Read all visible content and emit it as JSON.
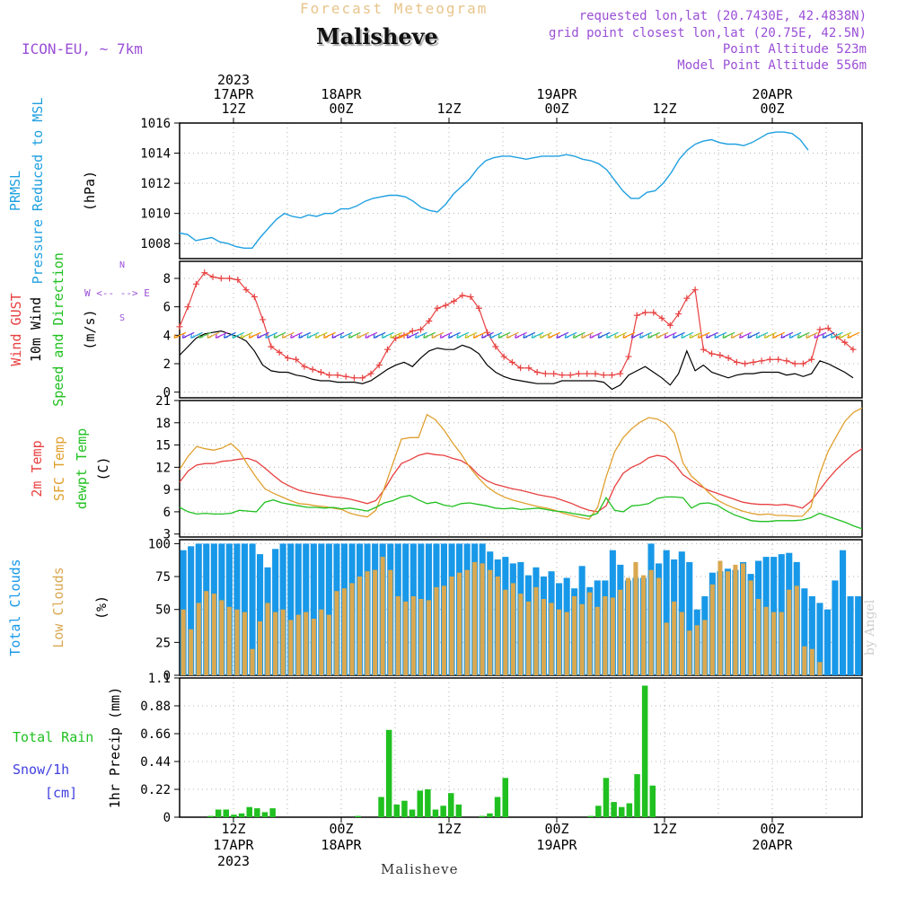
{
  "header": {
    "subtitle": "Forecast Meteogram",
    "location": "Malisheve",
    "model": "ICON-EU, ~ 7km",
    "info_lines": [
      "requested lon,lat (20.7430E, 42.4838N)",
      "grid point closest lon,lat (20.75E, 42.5N)",
      "Point Altitude 523m",
      "Model Point Altitude 556m"
    ],
    "bottom_label": "Malisheve",
    "watermark": "by Angel"
  },
  "time_axis": {
    "start_hour": 6,
    "end_hour": 82,
    "top_labels": [
      {
        "hour": 12,
        "lines": [
          "2023",
          "17APR",
          "12Z"
        ]
      },
      {
        "hour": 24,
        "lines": [
          "18APR",
          "00Z"
        ]
      },
      {
        "hour": 36,
        "lines": [
          "12Z"
        ]
      },
      {
        "hour": 48,
        "lines": [
          "19APR",
          "00Z"
        ]
      },
      {
        "hour": 60,
        "lines": [
          "12Z"
        ]
      },
      {
        "hour": 72,
        "lines": [
          "20APR",
          "00Z"
        ]
      }
    ],
    "bottom_labels": [
      {
        "hour": 12,
        "lines": [
          "12Z",
          "17APR",
          "2023"
        ]
      },
      {
        "hour": 24,
        "lines": [
          "00Z",
          "18APR"
        ]
      },
      {
        "hour": 36,
        "lines": [
          "12Z"
        ]
      },
      {
        "hour": 48,
        "lines": [
          "00Z",
          "19APR"
        ]
      },
      {
        "hour": 60,
        "lines": [
          "12Z"
        ]
      },
      {
        "hour": 72,
        "lines": [
          "00Z",
          "20APR"
        ]
      }
    ]
  },
  "colors": {
    "pressure": "#1fa0e0",
    "gust": "#e84040",
    "wind": "#000000",
    "temp2m": "#e84040",
    "sfc_temp": "#e0a030",
    "dewpt": "#20c020",
    "total_clouds": "#1898e8",
    "low_clouds": "#d9a850",
    "rain": "#20c020",
    "purple": "#9a4fd6",
    "snow": "#4040e0"
  },
  "chart_data": [
    {
      "type": "line",
      "panel": "pressure",
      "ylabel_lines": [
        {
          "text": "PRMSL",
          "color": "#1fa0e0"
        },
        {
          "text": "Pressure Reduced to MSL",
          "color": "#1fa0e0"
        },
        {
          "text": "(hPa)",
          "color": "#000000"
        }
      ],
      "ylim": [
        1007,
        1016
      ],
      "yticks": [
        1008,
        1010,
        1012,
        1014,
        1016
      ],
      "series": [
        {
          "values": [
            1008.7,
            1008.6,
            1008.2,
            1008.3,
            1008.4,
            1008.1,
            1008.0,
            1007.8,
            1007.7,
            1007.7,
            1008.4,
            1009.0,
            1009.6,
            1010.0,
            1009.8,
            1009.7,
            1009.9,
            1009.8,
            1010.0,
            1010.0,
            1010.3,
            1010.3,
            1010.5,
            1010.8,
            1011.0,
            1011.1,
            1011.2,
            1011.2,
            1011.1,
            1010.8,
            1010.4,
            1010.2,
            1010.1,
            1010.6,
            1011.3,
            1011.8,
            1012.3,
            1013.0,
            1013.5,
            1013.7,
            1013.8,
            1013.8,
            1013.7,
            1013.6,
            1013.7,
            1013.8,
            1013.8,
            1013.8,
            1013.9,
            1013.8,
            1013.6,
            1013.5,
            1013.3,
            1012.9,
            1012.2,
            1011.5,
            1011.0,
            1011.0,
            1011.4,
            1011.5,
            1012.0,
            1012.7,
            1013.6,
            1014.2,
            1014.6,
            1014.8,
            1014.9,
            1014.7,
            1014.6,
            1014.6,
            1014.5,
            1014.7,
            1015.0,
            1015.3,
            1015.4,
            1015.4,
            1015.3,
            1014.9,
            1014.2
          ]
        }
      ]
    },
    {
      "type": "line",
      "panel": "wind",
      "ylabel_lines": [
        {
          "text": "Wind GUST",
          "color": "#e84040"
        },
        {
          "text": "10m Wind",
          "color": "#000000"
        },
        {
          "text": "Speed and Direction",
          "color": "#20c020"
        },
        {
          "text": "(m/s)",
          "color": "#000000"
        }
      ],
      "compass": "W <-- --> E",
      "ylim": [
        -0.4,
        9.2
      ],
      "yticks": [
        0,
        2,
        4,
        6,
        8
      ],
      "series": [
        {
          "name": "Wind GUST",
          "values": [
            4.6,
            6.0,
            7.6,
            8.4,
            8.1,
            8.0,
            8.0,
            7.9,
            7.2,
            6.7,
            5.1,
            3.2,
            2.8,
            2.4,
            2.3,
            1.8,
            1.6,
            1.4,
            1.2,
            1.2,
            1.1,
            1.0,
            1.0,
            1.3,
            1.9,
            3.0,
            3.8,
            4.0,
            4.3,
            4.4,
            5.0,
            5.9,
            6.1,
            6.4,
            6.8,
            6.7,
            5.9,
            4.2,
            3.2,
            2.5,
            2.1,
            1.7,
            1.7,
            1.4,
            1.3,
            1.3,
            1.2,
            1.2,
            1.3,
            1.3,
            1.3,
            1.2,
            1.2,
            1.3,
            2.5,
            5.4,
            5.6,
            5.6,
            5.2,
            4.7,
            5.5,
            6.6,
            7.2,
            3.0,
            2.7,
            2.6,
            2.4,
            2.1,
            2.0,
            2.1,
            2.2,
            2.3,
            2.3,
            2.2,
            2.0,
            2.0,
            2.3,
            4.4,
            4.5,
            3.9,
            3.5,
            3.0
          ]
        },
        {
          "name": "10m Wind",
          "values": [
            2.6,
            3.2,
            3.8,
            4.1,
            4.2,
            4.3,
            4.1,
            3.9,
            3.6,
            2.9,
            1.9,
            1.5,
            1.4,
            1.4,
            1.2,
            1.1,
            0.9,
            0.8,
            0.8,
            0.7,
            0.7,
            0.7,
            0.6,
            0.8,
            1.2,
            1.6,
            1.9,
            2.1,
            1.8,
            2.4,
            2.9,
            3.1,
            3.0,
            3.0,
            3.3,
            3.1,
            2.7,
            1.9,
            1.4,
            1.1,
            0.9,
            0.8,
            0.7,
            0.6,
            0.6,
            0.6,
            0.8,
            0.8,
            0.8,
            0.8,
            0.8,
            0.7,
            0.2,
            0.5,
            1.2,
            1.5,
            1.8,
            1.4,
            1.0,
            0.5,
            1.3,
            2.9,
            1.5,
            1.9,
            1.4,
            1.2,
            1.0,
            1.2,
            1.3,
            1.3,
            1.4,
            1.4,
            1.4,
            1.2,
            1.3,
            1.1,
            1.3,
            2.2,
            2.0,
            1.7,
            1.4,
            1.0
          ]
        }
      ]
    },
    {
      "type": "line",
      "panel": "temperature",
      "ylabel_lines": [
        {
          "text": "2m Temp",
          "color": "#e84040"
        },
        {
          "text": "SFC Temp",
          "color": "#e0a030"
        },
        {
          "text": "dewpt Temp",
          "color": "#20c020"
        },
        {
          "text": "(C)",
          "color": "#000000"
        }
      ],
      "ylim": [
        2.6,
        21
      ],
      "yticks": [
        3,
        6,
        9,
        12,
        15,
        18,
        21
      ],
      "series": [
        {
          "name": "2m Temp",
          "values": [
            10.0,
            11.5,
            12.3,
            12.5,
            12.5,
            12.8,
            12.9,
            13.1,
            13.2,
            12.8,
            11.9,
            10.9,
            10.0,
            9.4,
            8.9,
            8.6,
            8.4,
            8.2,
            8.0,
            7.9,
            7.7,
            7.4,
            7.1,
            7.5,
            9.0,
            10.9,
            12.5,
            13.0,
            13.6,
            13.9,
            13.7,
            13.6,
            13.2,
            12.9,
            12.2,
            11.0,
            10.2,
            9.7,
            9.4,
            9.1,
            8.9,
            8.6,
            8.3,
            8.1,
            7.9,
            7.5,
            7.1,
            6.6,
            6.2,
            6.0,
            6.8,
            9.4,
            11.2,
            12.0,
            12.5,
            13.3,
            13.6,
            13.4,
            12.5,
            11.0,
            10.2,
            9.5,
            8.9,
            8.5,
            8.1,
            7.7,
            7.3,
            7.1,
            7.0,
            7.0,
            6.9,
            7.0,
            6.8,
            6.5,
            7.4,
            8.9,
            10.4,
            11.7,
            12.8,
            13.8,
            14.5
          ]
        },
        {
          "name": "SFC Temp",
          "values": [
            11.7,
            13.5,
            14.8,
            14.5,
            14.3,
            14.6,
            15.2,
            14.2,
            12.3,
            10.6,
            9.1,
            8.5,
            8.0,
            7.5,
            7.1,
            7.0,
            6.8,
            6.7,
            6.5,
            6.3,
            5.8,
            5.5,
            5.3,
            6.2,
            9.2,
            12.5,
            15.8,
            16.0,
            16.0,
            19.1,
            18.4,
            17.0,
            15.3,
            13.8,
            12.0,
            10.6,
            9.4,
            8.6,
            8.0,
            7.6,
            7.3,
            7.0,
            6.7,
            6.5,
            6.2,
            5.8,
            5.5,
            5.2,
            5.0,
            6.6,
            10.7,
            14.1,
            16.0,
            17.2,
            18.1,
            18.7,
            18.5,
            17.9,
            16.6,
            12.6,
            10.8,
            9.8,
            8.6,
            7.6,
            7.0,
            6.5,
            6.1,
            5.8,
            5.6,
            5.7,
            5.5,
            5.5,
            5.4,
            5.4,
            6.6,
            11.0,
            14.1,
            16.2,
            18.2,
            19.4,
            20.0
          ]
        },
        {
          "name": "dewpt Temp",
          "values": [
            6.6,
            6.0,
            5.7,
            5.8,
            5.7,
            5.7,
            5.8,
            6.2,
            6.1,
            6.0,
            7.3,
            7.6,
            7.2,
            7.0,
            6.8,
            6.6,
            6.6,
            6.5,
            6.6,
            6.4,
            6.5,
            6.3,
            6.1,
            6.6,
            7.2,
            7.5,
            8.0,
            8.2,
            7.6,
            7.1,
            7.3,
            6.9,
            6.7,
            7.1,
            7.2,
            7.0,
            6.8,
            6.5,
            6.4,
            6.5,
            6.3,
            6.4,
            6.5,
            6.3,
            6.1,
            6.0,
            5.8,
            5.6,
            5.4,
            5.8,
            7.9,
            6.2,
            6.0,
            6.8,
            6.9,
            7.1,
            7.8,
            8.0,
            8.0,
            7.9,
            6.5,
            7.1,
            7.2,
            6.9,
            6.2,
            5.6,
            5.2,
            4.8,
            4.7,
            4.7,
            4.8,
            4.8,
            4.8,
            4.9,
            5.2,
            5.8,
            5.4,
            5.0,
            4.6,
            4.1,
            3.7
          ]
        }
      ]
    },
    {
      "type": "bar",
      "panel": "clouds",
      "ylabel_lines": [
        {
          "text": "Total Clouds",
          "color": "#1898e8"
        },
        {
          "text": "Low Clouds",
          "color": "#d9a850"
        },
        {
          "text": "(%)",
          "color": "#000000"
        }
      ],
      "ylim": [
        0,
        103
      ],
      "yticks": [
        0,
        25,
        50,
        75,
        100
      ],
      "series": [
        {
          "name": "Total Clouds",
          "values": [
            95,
            98,
            100,
            100,
            100,
            100,
            100,
            100,
            100,
            100,
            92,
            82,
            96,
            100,
            100,
            100,
            100,
            100,
            100,
            100,
            100,
            100,
            100,
            100,
            100,
            100,
            100,
            100,
            100,
            100,
            100,
            100,
            100,
            100,
            100,
            100,
            100,
            100,
            100,
            100,
            94,
            88,
            90,
            85,
            86,
            76,
            82,
            75,
            79,
            70,
            74,
            66,
            83,
            67,
            72,
            72,
            95,
            84,
            72,
            74,
            74,
            100,
            85,
            95,
            88,
            94,
            86,
            50,
            60,
            78,
            79,
            81,
            80,
            86,
            77,
            87,
            90,
            90,
            92,
            93,
            86,
            66,
            60,
            55,
            50,
            72,
            95,
            60,
            60
          ]
        },
        {
          "name": "Low Clouds",
          "values": [
            50,
            35,
            55,
            64,
            62,
            57,
            52,
            50,
            48,
            20,
            41,
            55,
            48,
            50,
            42,
            46,
            48,
            43,
            50,
            46,
            64,
            66,
            70,
            75,
            79,
            80,
            90,
            80,
            60,
            56,
            60,
            58,
            57,
            67,
            68,
            75,
            78,
            80,
            86,
            85,
            80,
            75,
            65,
            70,
            62,
            56,
            67,
            58,
            55,
            50,
            48,
            60,
            54,
            63,
            52,
            60,
            59,
            65,
            74,
            86,
            76,
            80,
            74,
            40,
            56,
            48,
            34,
            38,
            42,
            69,
            87,
            79,
            84,
            85,
            72,
            58,
            52,
            48,
            48,
            65,
            68,
            22,
            20,
            10
          ]
        }
      ]
    },
    {
      "type": "bar",
      "panel": "precip",
      "ylabel_lines": [
        {
          "text": "1hr Precip (mm)",
          "color": "#000000"
        }
      ],
      "side_labels": [
        "Total  Rain",
        "Snow/1h",
        "[cm]"
      ],
      "ylim": [
        0,
        1.1
      ],
      "yticks": [
        0,
        0.22,
        0.44,
        0.66,
        0.88,
        1.1
      ],
      "series": [
        {
          "name": "Total Rain",
          "values": [
            0,
            0,
            0.01,
            0.06,
            0.06,
            0.02,
            0.03,
            0.08,
            0.07,
            0.04,
            0.07,
            0,
            0,
            0,
            0,
            0,
            0,
            0,
            0,
            0,
            0,
            0.01,
            0,
            0,
            0.16,
            0.69,
            0.1,
            0.13,
            0.06,
            0.21,
            0.22,
            0.06,
            0.09,
            0.19,
            0.1,
            0,
            0,
            0.01,
            0.03,
            0.16,
            0.31,
            0,
            0,
            0,
            0,
            0,
            0,
            0,
            0,
            0,
            0,
            0.01,
            0.09,
            0.31,
            0.12,
            0.08,
            0.11,
            0.34,
            1.04,
            0.25,
            0,
            0,
            0,
            0,
            0,
            0,
            0,
            0,
            0,
            0,
            0,
            0,
            0,
            0,
            0,
            0,
            0,
            0,
            0,
            0,
            0,
            0,
            0,
            0
          ]
        }
      ]
    }
  ]
}
